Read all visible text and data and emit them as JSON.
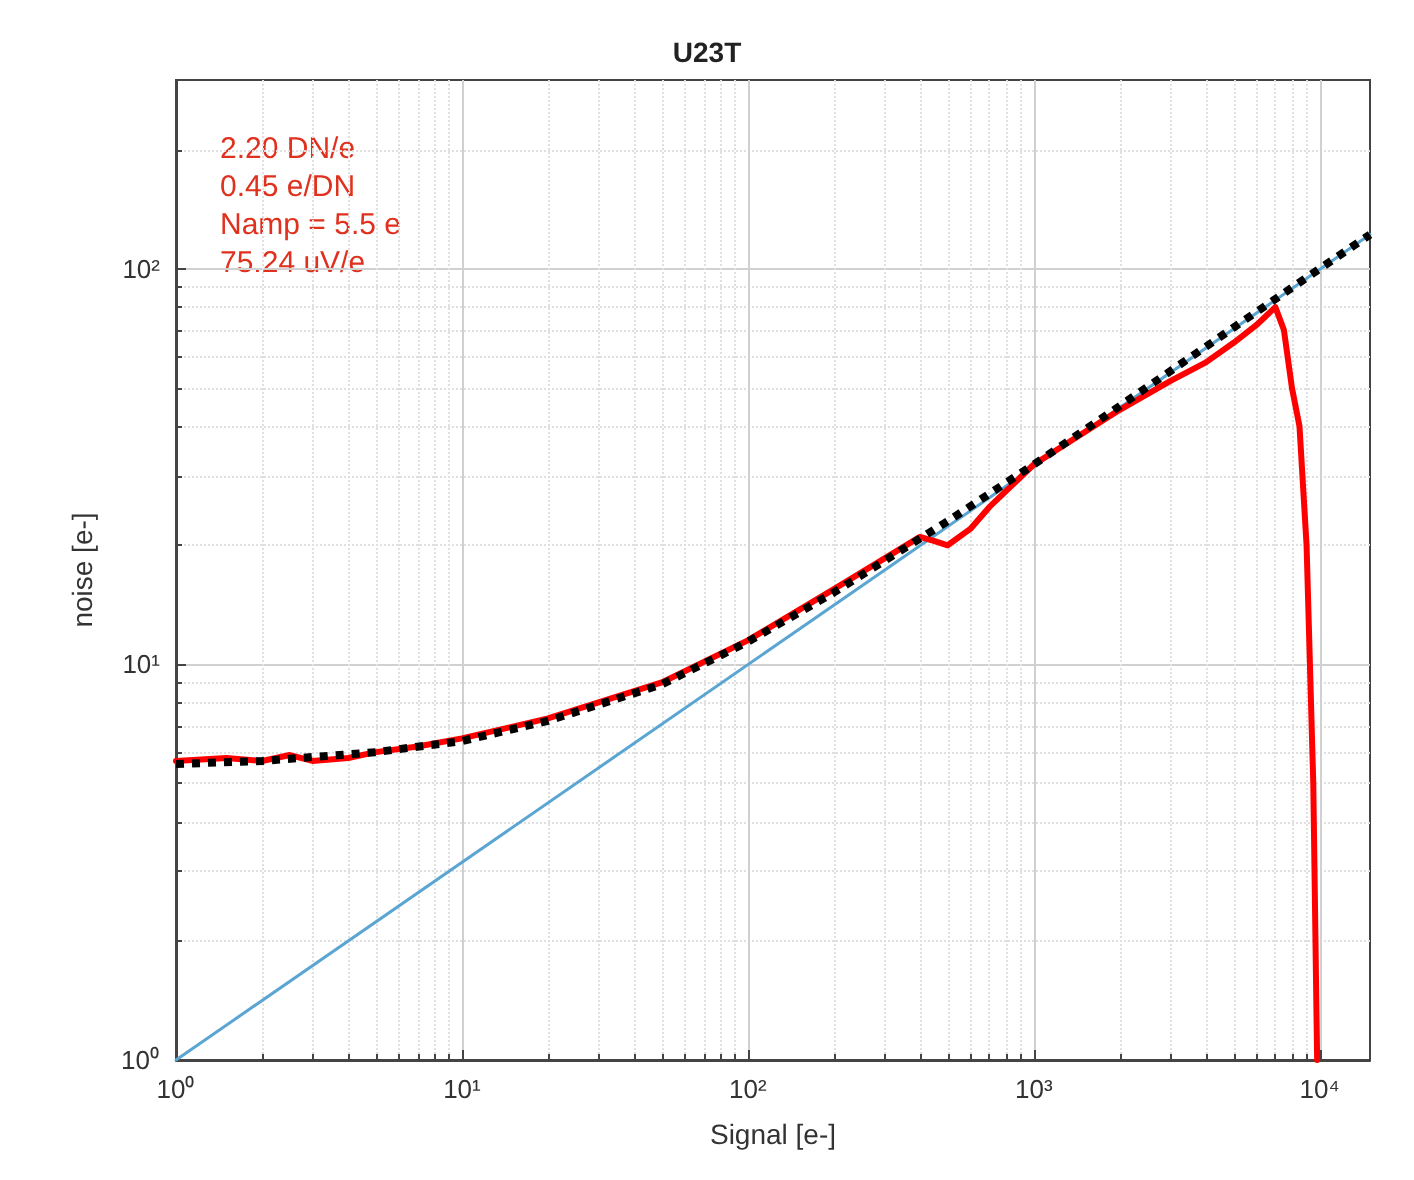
{
  "chart_data": {
    "type": "line",
    "title": "U23T",
    "xlabel": "Signal [e-]",
    "ylabel": "noise [e-]",
    "log": "xy",
    "grid": true,
    "marker": "none",
    "xlim": [
      1,
      15000
    ],
    "ylim": [
      1,
      300
    ],
    "xticks": [
      {
        "value": 1,
        "label": "10⁰"
      },
      {
        "value": 10,
        "label": "10¹"
      },
      {
        "value": 100,
        "label": "10²"
      },
      {
        "value": 1000,
        "label": "10³"
      },
      {
        "value": 10000,
        "label": "10⁴"
      }
    ],
    "yticks": [
      {
        "value": 1,
        "label": "10⁰"
      },
      {
        "value": 10,
        "label": "10¹"
      },
      {
        "value": 100,
        "label": "10²"
      }
    ],
    "annotations": [
      "2.20 DN/e",
      "0.45 e/DN",
      "Namp = 5.5 e",
      "75.24 uV/e"
    ],
    "series": [
      {
        "color": "#5aa5d2",
        "line_style": "solid",
        "x": [
          1,
          15000
        ],
        "values": [
          1,
          122
        ]
      },
      {
        "color": "#ff0000",
        "line_style": "solid",
        "x": [
          1,
          1.5,
          2,
          2.5,
          3,
          4,
          5,
          7,
          10,
          20,
          50,
          100,
          200,
          400,
          450,
          500,
          600,
          700,
          1000,
          2000,
          3000,
          4000,
          5000,
          6000,
          7000,
          7500,
          8000,
          8500,
          9000,
          9500,
          9800
        ],
        "values": [
          5.7,
          5.8,
          5.7,
          5.9,
          5.7,
          5.8,
          6.0,
          6.2,
          6.5,
          7.3,
          9.0,
          11.5,
          15.5,
          21,
          20.5,
          20,
          22,
          25,
          32,
          44,
          52,
          58,
          65,
          72,
          80,
          70,
          50,
          40,
          20,
          5,
          1
        ]
      },
      {
        "color": "#000000",
        "line_style": "dotted",
        "x": [
          1,
          2,
          5,
          10,
          20,
          50,
          100,
          200,
          500,
          1000,
          2000,
          5000,
          10000,
          15000
        ],
        "values": [
          5.6,
          5.7,
          6.0,
          6.4,
          7.2,
          8.9,
          11.4,
          15.2,
          23,
          32,
          45,
          71,
          100,
          122
        ]
      }
    ]
  }
}
